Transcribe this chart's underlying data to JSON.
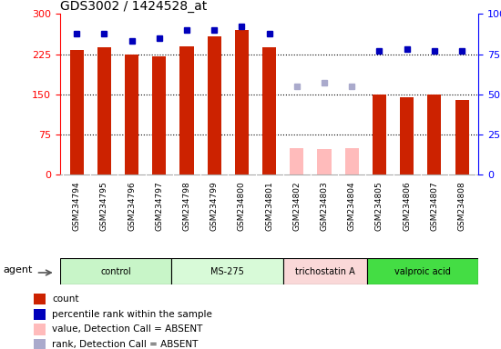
{
  "title": "GDS3002 / 1424528_at",
  "samples": [
    "GSM234794",
    "GSM234795",
    "GSM234796",
    "GSM234797",
    "GSM234798",
    "GSM234799",
    "GSM234800",
    "GSM234801",
    "GSM234802",
    "GSM234803",
    "GSM234804",
    "GSM234805",
    "GSM234806",
    "GSM234807",
    "GSM234808"
  ],
  "count_values": [
    232,
    237,
    225,
    220,
    240,
    258,
    270,
    238,
    null,
    null,
    null,
    150,
    145,
    150,
    140
  ],
  "count_absent": [
    null,
    null,
    null,
    null,
    null,
    null,
    null,
    null,
    50,
    48,
    50,
    null,
    null,
    null,
    null
  ],
  "rank_values": [
    88,
    88,
    83,
    85,
    90,
    90,
    92,
    88,
    null,
    null,
    null,
    77,
    78,
    77,
    77
  ],
  "rank_absent": [
    null,
    null,
    null,
    null,
    null,
    null,
    null,
    null,
    55,
    57,
    55,
    null,
    null,
    null,
    null
  ],
  "groups": [
    {
      "label": "control",
      "start": 0,
      "end": 3,
      "color": "#c8f5c8"
    },
    {
      "label": "MS-275",
      "start": 4,
      "end": 7,
      "color": "#d8fad8"
    },
    {
      "label": "trichostatin A",
      "start": 8,
      "end": 10,
      "color": "#fad8d8"
    },
    {
      "label": "valproic acid",
      "start": 11,
      "end": 14,
      "color": "#44dd44"
    }
  ],
  "left_ylim": [
    0,
    300
  ],
  "right_ylim": [
    0,
    100
  ],
  "left_yticks": [
    0,
    75,
    150,
    225,
    300
  ],
  "right_yticks": [
    0,
    25,
    50,
    75,
    100
  ],
  "bar_width": 0.5,
  "count_color": "#cc2200",
  "absent_count_color": "#ffbbbb",
  "rank_color": "#0000bb",
  "absent_rank_color": "#aaaacc",
  "plot_bg_color": "#ffffff",
  "xtick_bg_color": "#d8d8d8",
  "dotted_lines": [
    75,
    150,
    225
  ],
  "legend_items": [
    {
      "label": "count",
      "color": "#cc2200"
    },
    {
      "label": "percentile rank within the sample",
      "color": "#0000bb"
    },
    {
      "label": "value, Detection Call = ABSENT",
      "color": "#ffbbbb"
    },
    {
      "label": "rank, Detection Call = ABSENT",
      "color": "#aaaacc"
    }
  ]
}
